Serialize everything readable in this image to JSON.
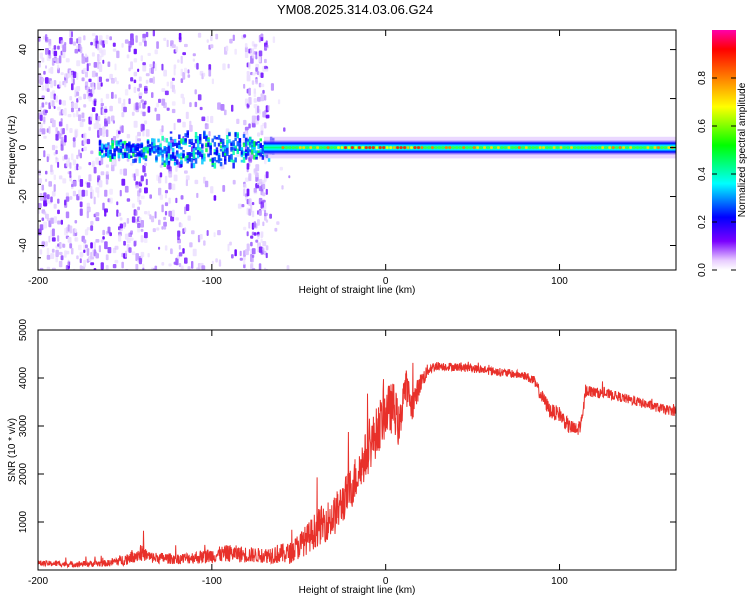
{
  "title": "YM08.2025.314.03.06.G24",
  "chart_data": [
    {
      "type": "heatmap",
      "xlabel": "Height of straight line (km)",
      "ylabel": "Frequency (Hz)",
      "xlim": [
        -200,
        167
      ],
      "ylim": [
        -50,
        48
      ],
      "xticks": [
        -200,
        -100,
        0,
        100
      ],
      "xtick_labels": [
        "-200",
        "-100",
        "0",
        "100"
      ],
      "yticks": [
        -40,
        -20,
        0,
        20,
        40
      ],
      "ytick_labels": [
        "-40",
        "-20",
        "0",
        "20",
        "40"
      ],
      "colorbar": {
        "label": "Normalized spectral amplitude",
        "range": [
          0,
          1
        ],
        "ticks": [
          0.0,
          0.2,
          0.4,
          0.6,
          0.8
        ],
        "tick_labels": [
          "0.0",
          "0.2",
          "0.4",
          "0.6",
          "0.8"
        ],
        "colors": [
          "#ffffff",
          "#7a00ff",
          "#0000ff",
          "#00ffff",
          "#00ff00",
          "#ffff00",
          "#ff8000",
          "#ff0000",
          "#ff00ff"
        ]
      },
      "features": {
        "noise_region_x": [
          -200,
          -65
        ],
        "carrier_band_x": [
          -65,
          167
        ],
        "carrier_center_hz": 0,
        "carrier_halfwidth_hz": 2
      }
    },
    {
      "type": "line",
      "xlabel": "Height of straight line (km)",
      "ylabel": "SNR (10 * v/v)",
      "xlim": [
        -200,
        167
      ],
      "ylim": [
        0,
        5000
      ],
      "xticks": [
        -200,
        -100,
        0,
        100
      ],
      "xtick_labels": [
        "-200",
        "-100",
        "0",
        "100"
      ],
      "yticks": [
        1000,
        2000,
        3000,
        4000,
        5000
      ],
      "ytick_labels": [
        "1000",
        "2000",
        "3000",
        "4000",
        "5000"
      ],
      "color": "#e8302a",
      "series": [
        {
          "name": "SNR",
          "x": [
            -200,
            -180,
            -160,
            -150,
            -145,
            -140,
            -135,
            -120,
            -110,
            -100,
            -90,
            -80,
            -70,
            -65,
            -55,
            -50,
            -45,
            -40,
            -35,
            -30,
            -25,
            -20,
            -15,
            -10,
            -5,
            0,
            5,
            8,
            10,
            12,
            15,
            18,
            20,
            25,
            30,
            40,
            50,
            60,
            70,
            80,
            85,
            90,
            95,
            100,
            105,
            110,
            113,
            115,
            120,
            130,
            140,
            150,
            160,
            167
          ],
          "y": [
            140,
            120,
            140,
            220,
            300,
            350,
            260,
            230,
            260,
            300,
            350,
            320,
            300,
            330,
            350,
            500,
            650,
            850,
            1000,
            1100,
            1400,
            1700,
            2100,
            2500,
            2900,
            3300,
            3400,
            2900,
            3700,
            3800,
            3400,
            3700,
            3900,
            4200,
            4250,
            4230,
            4200,
            4150,
            4100,
            4050,
            3950,
            3600,
            3300,
            3250,
            3000,
            2900,
            3100,
            3750,
            3700,
            3650,
            3550,
            3450,
            3350,
            3300
          ],
          "noise_amplitude": [
            60,
            60,
            70,
            120,
            150,
            160,
            120,
            110,
            130,
            160,
            180,
            170,
            150,
            200,
            220,
            280,
            320,
            380,
            420,
            420,
            450,
            460,
            500,
            500,
            520,
            550,
            520,
            450,
            450,
            380,
            330,
            260,
            200,
            130,
            90,
            90,
            90,
            90,
            90,
            90,
            110,
            150,
            160,
            160,
            160,
            160,
            150,
            130,
            110,
            100,
            100,
            100,
            100,
            100
          ]
        }
      ]
    }
  ]
}
